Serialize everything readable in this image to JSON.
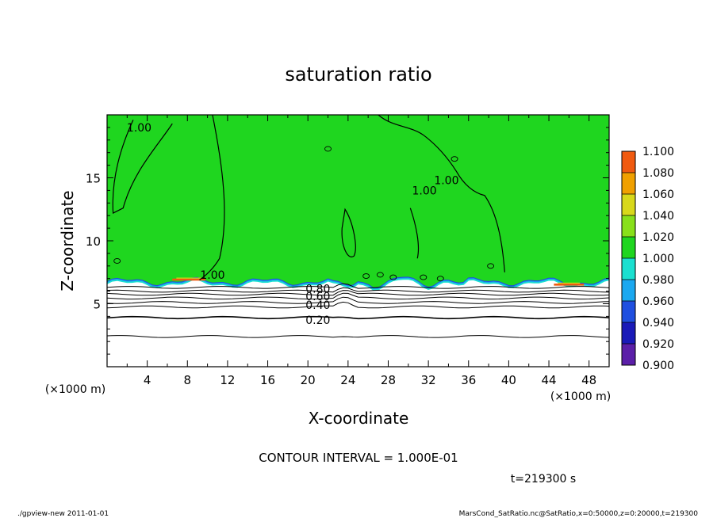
{
  "chart_data": {
    "type": "heatmap",
    "title": "saturation ratio",
    "xlabel": "X-coordinate",
    "ylabel": "Z-coordinate",
    "x_unit": "(×1000 m)",
    "y_unit": "(×1000 m)",
    "xlim": [
      0,
      50
    ],
    "ylim": [
      0,
      20
    ],
    "x_ticks": [
      4,
      8,
      12,
      16,
      20,
      24,
      28,
      32,
      36,
      40,
      44,
      48
    ],
    "y_ticks": [
      5,
      10,
      15
    ],
    "colorbar": {
      "levels": [
        "0.900",
        "0.920",
        "0.940",
        "0.960",
        "0.980",
        "1.000",
        "1.020",
        "1.040",
        "1.060",
        "1.080",
        "1.100"
      ],
      "colors": [
        "#5b1fa8",
        "#1a1ab8",
        "#1f4fe0",
        "#1aa8f0",
        "#1ae0d0",
        "#1fd61f",
        "#88e01a",
        "#d8d81a",
        "#f0a000",
        "#f05a10",
        "#ff9090"
      ]
    },
    "field_color": "#1fd61f",
    "contour_labels": [
      {
        "text": "1.00",
        "x": 3.2,
        "z": 19.0
      },
      {
        "text": "1.00",
        "x": 10.5,
        "z": 7.3
      },
      {
        "text": "1.00",
        "x": 31.6,
        "z": 14.0
      },
      {
        "text": "1.00",
        "x": 33.8,
        "z": 14.8
      },
      {
        "text": "0.80",
        "x": 21.0,
        "z": 6.2
      },
      {
        "text": "0.60",
        "x": 21.0,
        "z": 5.6
      },
      {
        "text": "0.40",
        "x": 21.0,
        "z": 4.9
      },
      {
        "text": "0.20",
        "x": 21.0,
        "z": 3.7
      }
    ],
    "contour_interval": "CONTOUR INTERVAL = 1.000E-01",
    "time": "t=219300  s"
  },
  "footer": {
    "left": "./gpview-new   2011-01-01",
    "right": "MarsCond_SatRatio.nc@SatRatio,x=0:50000,z=0:20000,t=219300"
  }
}
